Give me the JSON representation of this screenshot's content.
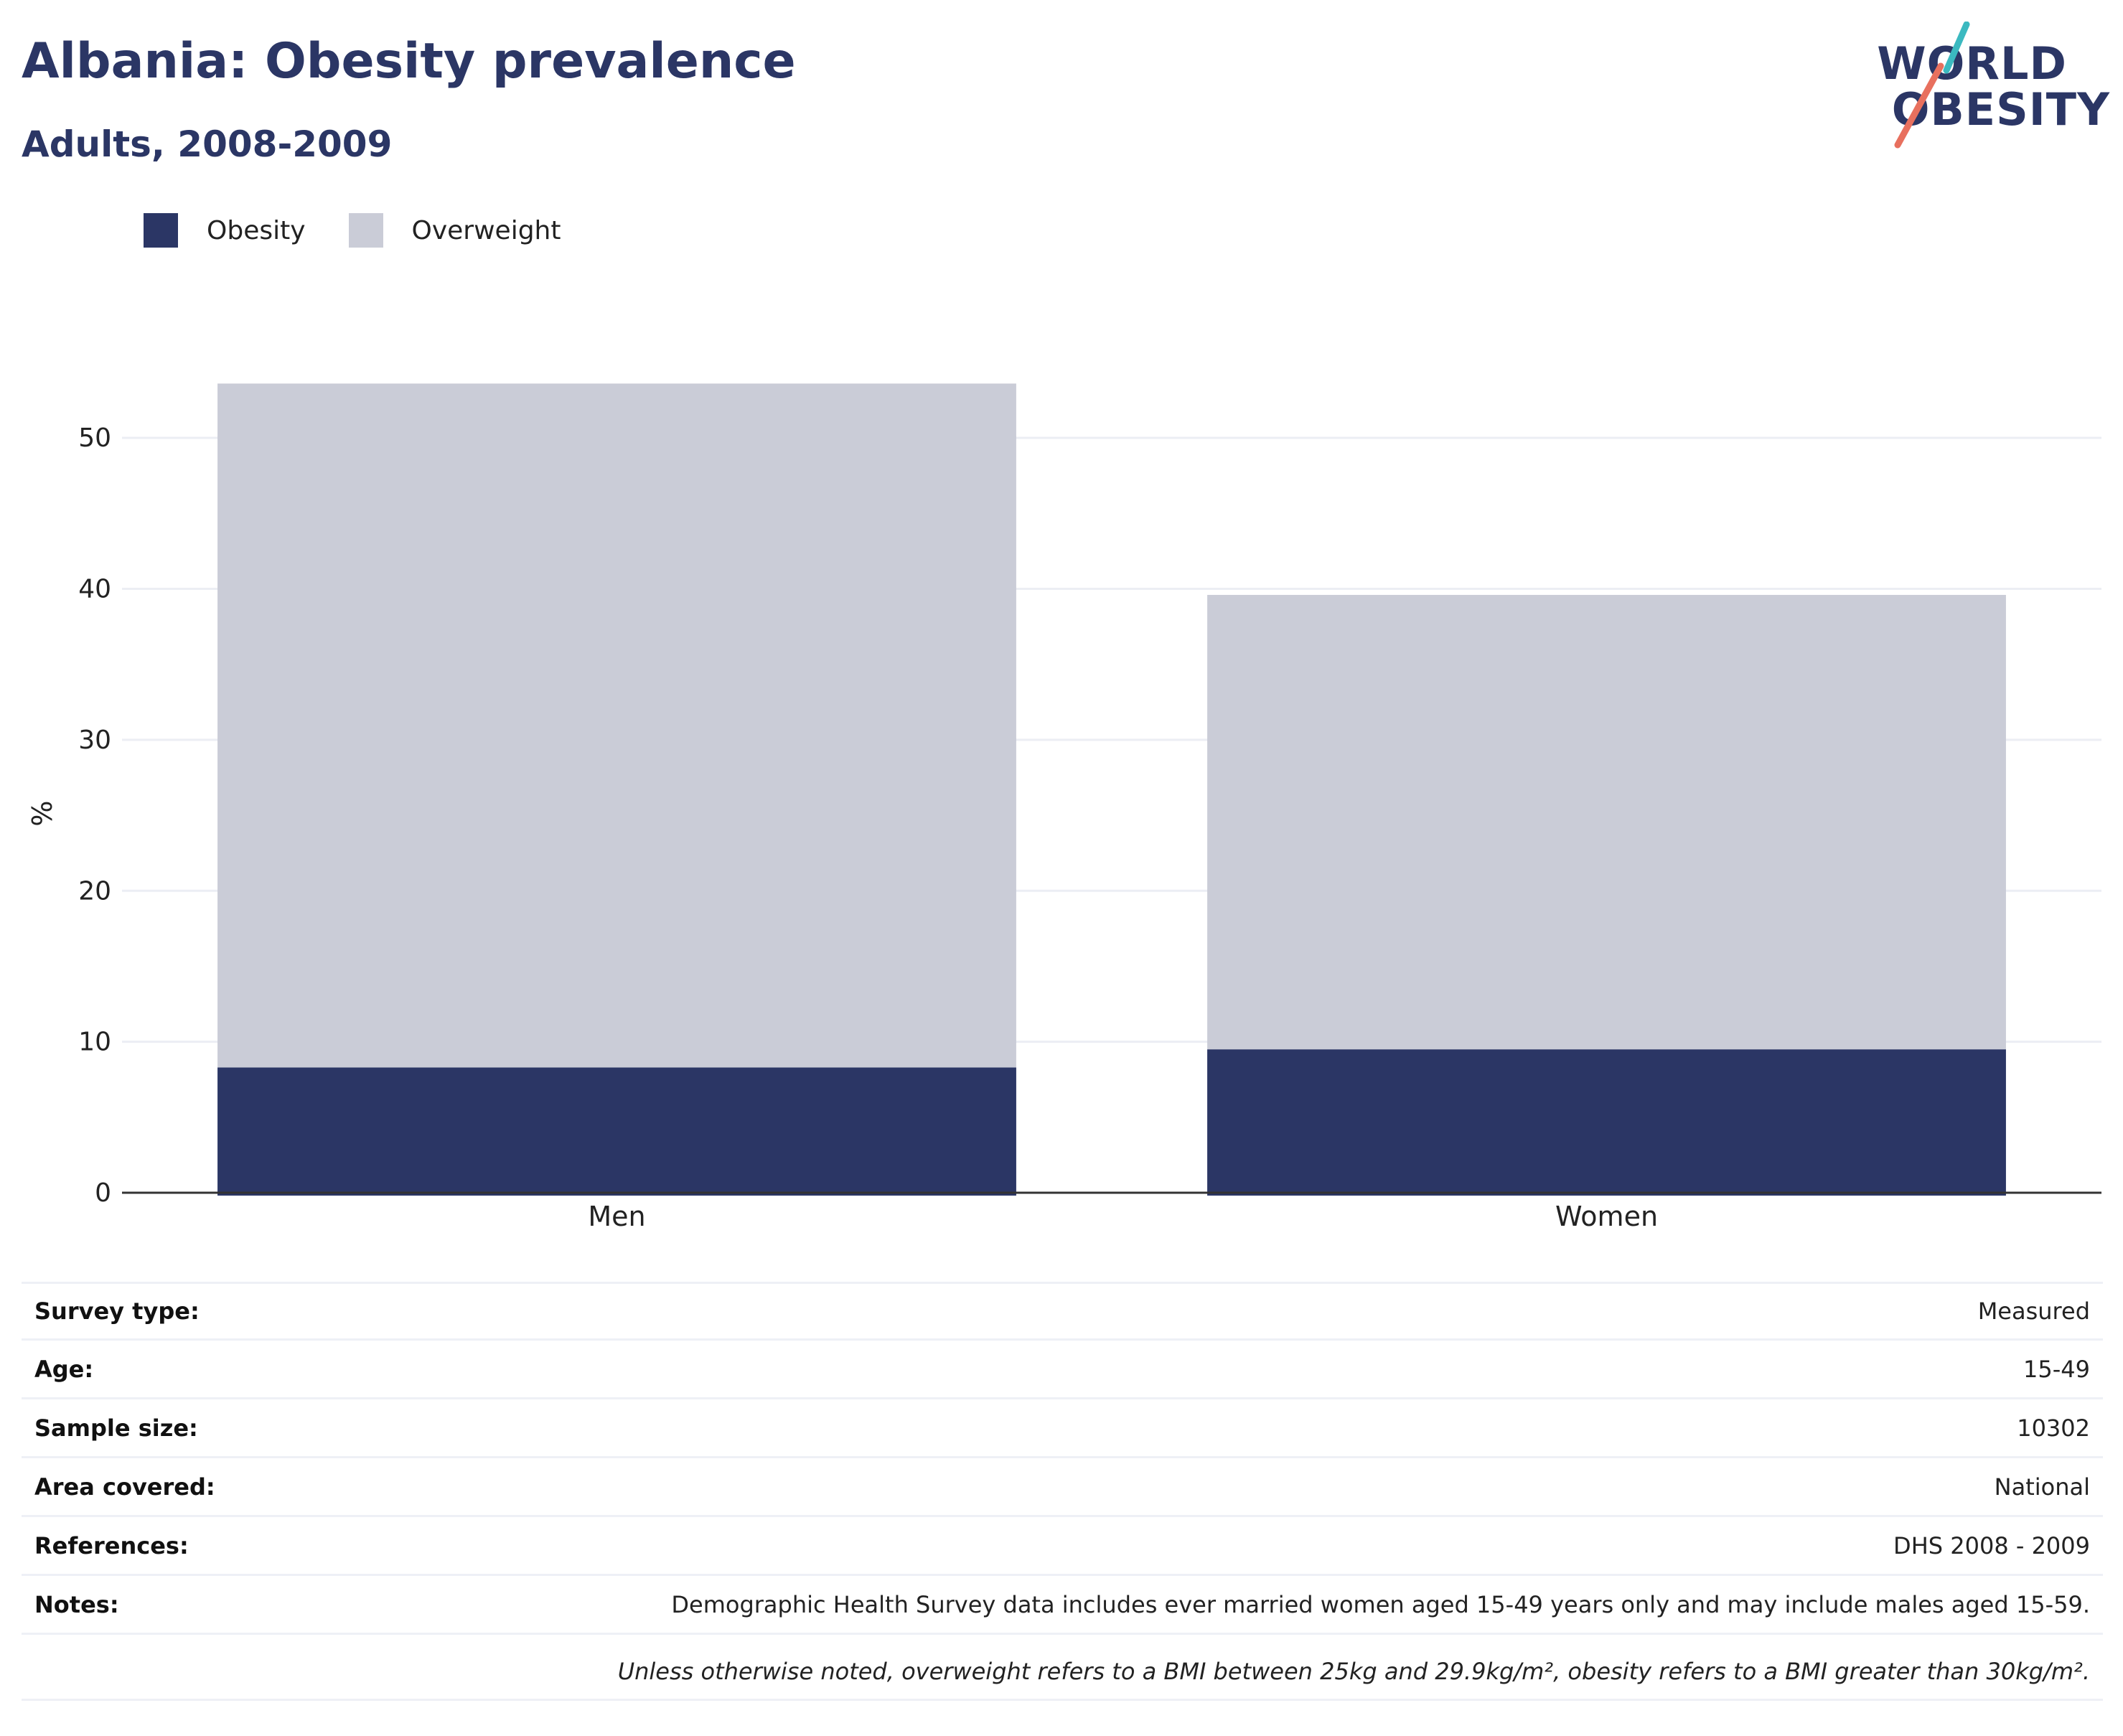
{
  "header": {
    "title": "Albania: Obesity prevalence",
    "subtitle": "Adults, 2008-2009"
  },
  "logo": {
    "line1": "WORLD",
    "line2": "OBESITY",
    "accent_teal": "#3bb9c0",
    "accent_coral": "#e8705e"
  },
  "colors": {
    "obesity": "#2b3665",
    "overweight": "#caccd7",
    "gridline": "#eceef4",
    "axis": "#333333"
  },
  "chart_data": {
    "type": "bar",
    "stacked": true,
    "categories": [
      "Men",
      "Women"
    ],
    "series": [
      {
        "name": "Obesity",
        "values": [
          8.3,
          9.5
        ]
      },
      {
        "name": "Overweight",
        "values": [
          45.3,
          30.1
        ]
      }
    ],
    "ylabel": "%",
    "xlabel": "",
    "ylim": [
      0,
      55
    ],
    "yticks": [
      0,
      10,
      20,
      30,
      40,
      50
    ],
    "grid": true,
    "legend": "top-left"
  },
  "info": [
    {
      "label": "Survey type:",
      "value": "Measured"
    },
    {
      "label": "Age:",
      "value": "15-49"
    },
    {
      "label": "Sample size:",
      "value": "10302"
    },
    {
      "label": "Area covered:",
      "value": "National"
    },
    {
      "label": "References:",
      "value": "DHS 2008 - 2009"
    },
    {
      "label": "Notes:",
      "value": "Demographic Health Survey data includes ever married women aged 15-49 years only and may include males aged 15-59."
    }
  ],
  "footnote": "Unless otherwise noted, overweight refers to a BMI between 25kg and 29.9kg/m², obesity refers to a BMI greater than 30kg/m²."
}
